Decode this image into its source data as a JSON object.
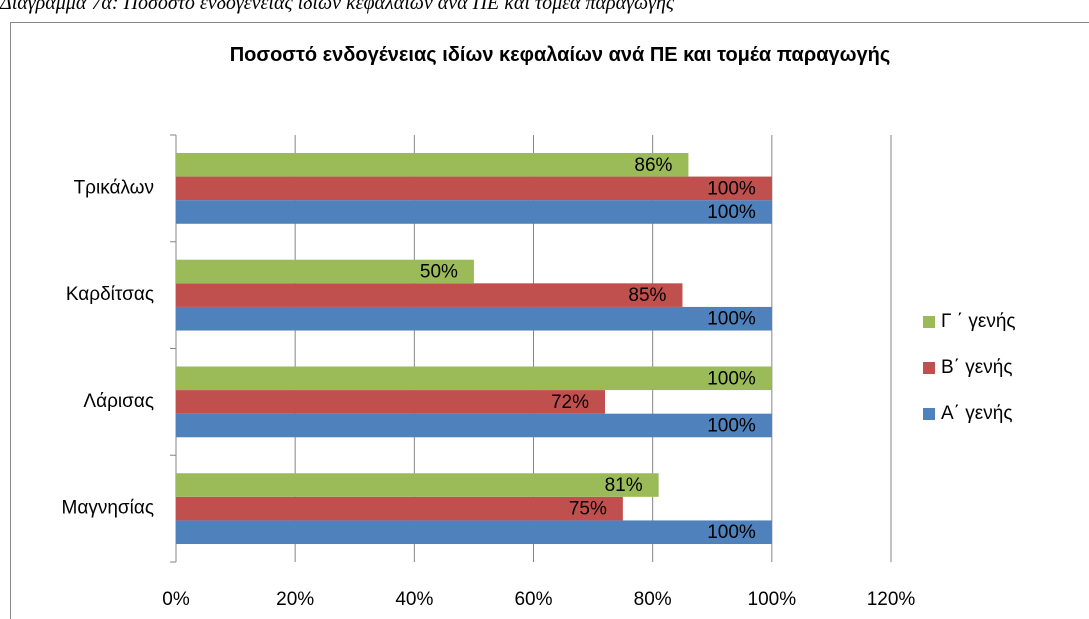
{
  "caption": "Διάγραμμα 7α: Ποσοστό ενδογένειας ιδίων κεφαλαίων ανά ΠΕ και τομέα παραγωγής",
  "chart_data": {
    "type": "hbar",
    "title": "Ποσοστό ενδογένειας ιδίων κεφαλαίων ανά ΠΕ και τομέα παραγωγής",
    "categories": [
      "Μαγνησίας",
      "Λάρισας",
      "Καρδίτσας",
      "Τρικάλων"
    ],
    "series": [
      {
        "name": "Α΄ γενής",
        "color": "#4f81bd",
        "values": [
          100,
          100,
          100,
          100
        ],
        "value_labels": [
          "100%",
          "100%",
          "100%",
          "100%"
        ]
      },
      {
        "name": "Β΄ γενής",
        "color": "#c0504d",
        "values": [
          75,
          72,
          85,
          100
        ],
        "value_labels": [
          "75%",
          "72%",
          "85%",
          "100%"
        ]
      },
      {
        "name": "Γ ΄ γενής",
        "color": "#9bbb59",
        "values": [
          81,
          100,
          50,
          86
        ],
        "value_labels": [
          "81%",
          "100%",
          "50%",
          "86%"
        ]
      }
    ],
    "xlim": [
      0,
      120
    ],
    "xticks": [
      {
        "value": 0,
        "label": "0%"
      },
      {
        "value": 20,
        "label": "20%"
      },
      {
        "value": 40,
        "label": "40%"
      },
      {
        "value": 60,
        "label": "60%"
      },
      {
        "value": 80,
        "label": "80%"
      },
      {
        "value": 100,
        "label": "100%"
      },
      {
        "value": 120,
        "label": "120%"
      }
    ],
    "grid": true,
    "legend": "right"
  }
}
